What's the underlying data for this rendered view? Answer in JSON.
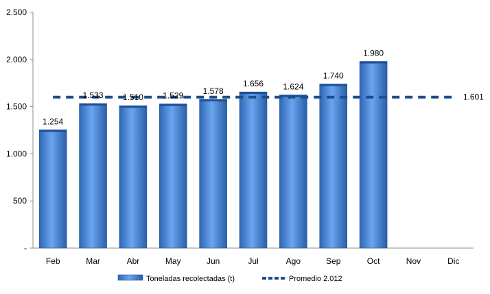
{
  "chart_data": {
    "type": "bar",
    "categories": [
      "Feb",
      "Mar",
      "Abr",
      "May",
      "Jun",
      "Jul",
      "Ago",
      "Sep",
      "Oct",
      "Nov",
      "Dic"
    ],
    "series": [
      {
        "name": "Toneladas recolectadas (t)",
        "type": "bar",
        "values": [
          1254,
          1533,
          1510,
          1529,
          1578,
          1656,
          1624,
          1740,
          1980,
          null,
          null
        ],
        "labels": [
          "1.254",
          "1.533",
          "1.510",
          "1.529",
          "1.578",
          "1.656",
          "1.624",
          "1.740",
          "1.980",
          "",
          ""
        ],
        "color": "#3f7fd2"
      },
      {
        "name": "Promedio 2.012",
        "type": "line",
        "value": 1601,
        "label": "1.601",
        "style": "dashed",
        "color": "#1f4e8c"
      }
    ],
    "y_ticks": [
      {
        "value": 0,
        "label": "-"
      },
      {
        "value": 500,
        "label": "500"
      },
      {
        "value": 1000,
        "label": "1.000"
      },
      {
        "value": 1500,
        "label": "1.500"
      },
      {
        "value": 2000,
        "label": "2.000"
      },
      {
        "value": 2500,
        "label": "2.500"
      }
    ],
    "ylim": [
      0,
      2500
    ],
    "title": "",
    "xlabel": "",
    "ylabel": "",
    "grid": false,
    "legend": {
      "position": "bottom",
      "items": [
        "Toneladas recolectadas (t)",
        "Promedio 2.012"
      ]
    }
  }
}
